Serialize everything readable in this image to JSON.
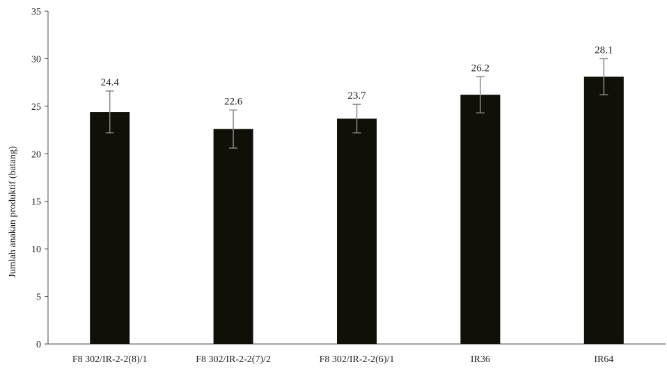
{
  "chart_data": {
    "type": "bar",
    "title": "",
    "xlabel": "",
    "ylabel": "Jumlah anakan produktif (batang)",
    "ylim": [
      0,
      35
    ],
    "yticks": [
      0,
      5,
      10,
      15,
      20,
      25,
      30,
      35
    ],
    "categories": [
      "F8 302/IR-2-2(8)/1",
      "F8 302/IR-2-2(7)/2",
      "F8 302/IR-2-2(6)/1",
      "IR36",
      "IR64"
    ],
    "values": [
      24.4,
      22.6,
      23.7,
      26.2,
      28.1
    ],
    "value_labels": [
      "24.4",
      "22.6",
      "23.7",
      "26.2",
      "28.1"
    ],
    "error": [
      2.2,
      2.0,
      1.5,
      1.9,
      1.9
    ],
    "grid": false,
    "legend": "none",
    "colors": {
      "bar": "#111008",
      "axis": "#444444",
      "error_bar": "#888888",
      "text": "#222222"
    }
  }
}
